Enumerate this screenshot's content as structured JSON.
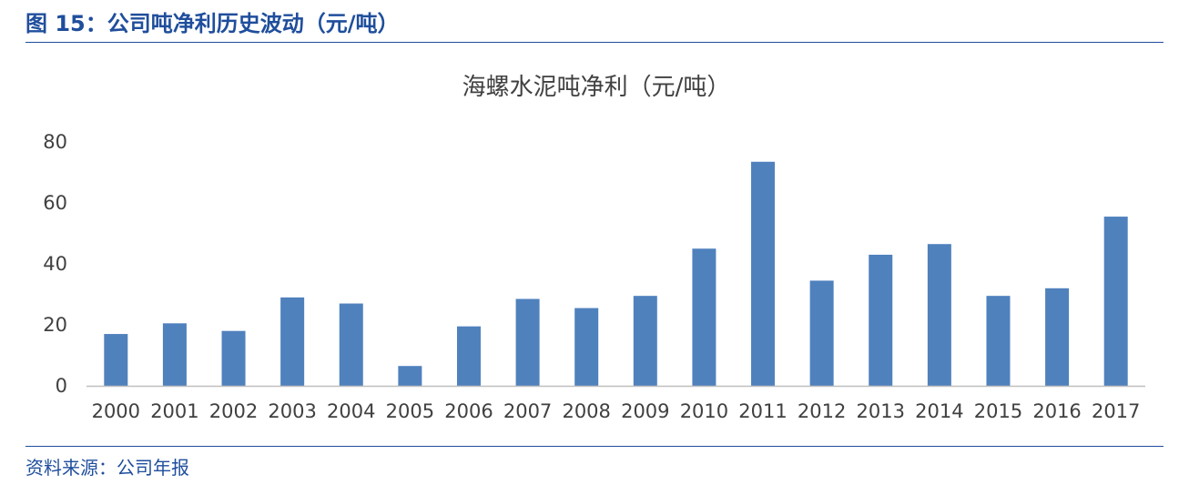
{
  "figure": {
    "title": "图 15：公司吨净利历史波动（元/吨）",
    "source": "资料来源：公司年报"
  },
  "colors": {
    "accent": "#1f4e9c",
    "bar": "#4f81bd",
    "axis": "#bfbfbf",
    "text": "#404040"
  },
  "chart_data": {
    "type": "bar",
    "title": "海螺水泥吨净利（元/吨）",
    "categories": [
      "2000",
      "2001",
      "2002",
      "2003",
      "2004",
      "2005",
      "2006",
      "2007",
      "2008",
      "2009",
      "2010",
      "2011",
      "2012",
      "2013",
      "2014",
      "2015",
      "2016",
      "2017"
    ],
    "values": [
      17,
      20.5,
      18,
      29,
      27,
      6.5,
      19.5,
      28.5,
      25.5,
      29.5,
      45,
      73.5,
      34.5,
      43,
      46.5,
      29.5,
      32,
      55.5
    ],
    "ylim": [
      0,
      80
    ],
    "yticks": [
      0,
      20,
      40,
      60,
      80
    ],
    "xlabel": "",
    "ylabel": "",
    "grid": false,
    "legend": "none"
  }
}
